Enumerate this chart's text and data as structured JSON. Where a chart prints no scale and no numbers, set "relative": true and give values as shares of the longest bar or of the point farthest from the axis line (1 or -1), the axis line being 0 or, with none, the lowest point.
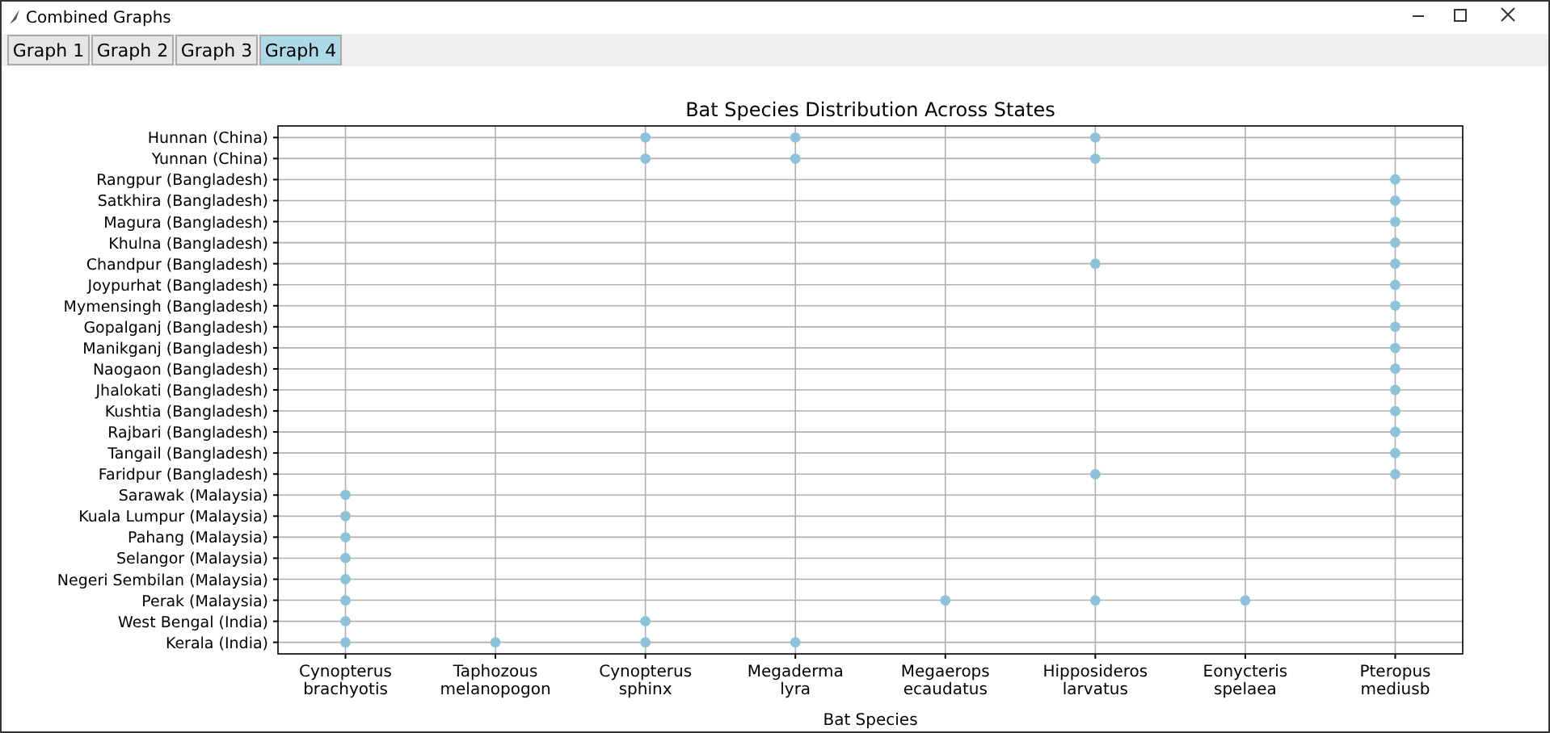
{
  "chart_data": {
    "type": "scatter",
    "title": "Bat Species Distribution Across States",
    "xlabel": "Bat Species",
    "annotations": [
      "Combined Graphs",
      "Graph 1",
      "Graph 2",
      "Graph 3",
      "Graph 4"
    ],
    "categories": [
      "Cynopterus brachyotis",
      "Taphozous melanopogon",
      "Cynopterus sphinx",
      "Megaderma lyra",
      "Megaerops ecaudatus",
      "Hipposideros larvatus",
      "Eonycteris spelaea",
      "Pteropus mediusb"
    ],
    "y_categories": [
      "Hunnan (China)",
      "Yunnan (China)",
      "Rangpur (Bangladesh)",
      "Satkhira (Bangladesh)",
      "Magura (Bangladesh)",
      "Khulna (Bangladesh)",
      "Chandpur (Bangladesh)",
      "Joypurhat (Bangladesh)",
      "Mymensingh (Bangladesh)",
      "Gopalganj (Bangladesh)",
      "Manikganj (Bangladesh)",
      "Naogaon (Bangladesh)",
      "Jhalokati (Bangladesh)",
      "Kushtia (Bangladesh)",
      "Rajbari (Bangladesh)",
      "Tangail (Bangladesh)",
      "Faridpur (Bangladesh)",
      "Sarawak (Malaysia)",
      "Kuala Lumpur (Malaysia)",
      "Pahang (Malaysia)",
      "Selangor (Malaysia)",
      "Negeri Sembilan (Malaysia)",
      "Perak (Malaysia)",
      "West Bengal (India)",
      "Kerala (India)"
    ],
    "series": [
      {
        "color": "#8ec1da",
        "x": [
          "Cynopterus sphinx",
          "Megaderma lyra",
          "Hipposideros larvatus",
          "Cynopterus sphinx",
          "Megaderma lyra",
          "Hipposideros larvatus",
          "Pteropus mediusb",
          "Pteropus mediusb",
          "Pteropus mediusb",
          "Pteropus mediusb",
          "Pteropus mediusb",
          "Hipposideros larvatus",
          "Pteropus mediusb",
          "Pteropus mediusb",
          "Pteropus mediusb",
          "Pteropus mediusb",
          "Pteropus mediusb",
          "Pteropus mediusb",
          "Pteropus mediusb",
          "Pteropus mediusb",
          "Pteropus mediusb",
          "Pteropus mediusb",
          "Hipposideros larvatus",
          "Cynopterus brachyotis",
          "Cynopterus brachyotis",
          "Cynopterus brachyotis",
          "Cynopterus brachyotis",
          "Cynopterus brachyotis",
          "Cynopterus brachyotis",
          "Megaerops ecaudatus",
          "Hipposideros larvatus",
          "Eonycteris spelaea",
          "Cynopterus brachyotis",
          "Cynopterus sphinx",
          "Cynopterus brachyotis",
          "Taphozous melanopogon",
          "Cynopterus sphinx",
          "Megaderma lyra"
        ],
        "values": [
          1,
          1,
          1,
          0.958,
          0.958,
          0.958,
          0.917,
          0.875,
          0.833,
          0.792,
          0.75,
          0.75,
          0.708,
          0.667,
          0.625,
          0.583,
          0.542,
          0.5,
          0.458,
          0.417,
          0.375,
          0.333,
          0.333,
          0.292,
          0.25,
          0.208,
          0.167,
          0.125,
          0.083,
          0.083,
          0.083,
          0.083,
          0.042,
          0.042,
          0,
          0,
          0,
          0
        ]
      }
    ],
    "relative": true,
    "grid": true,
    "marker": "circle"
  }
}
